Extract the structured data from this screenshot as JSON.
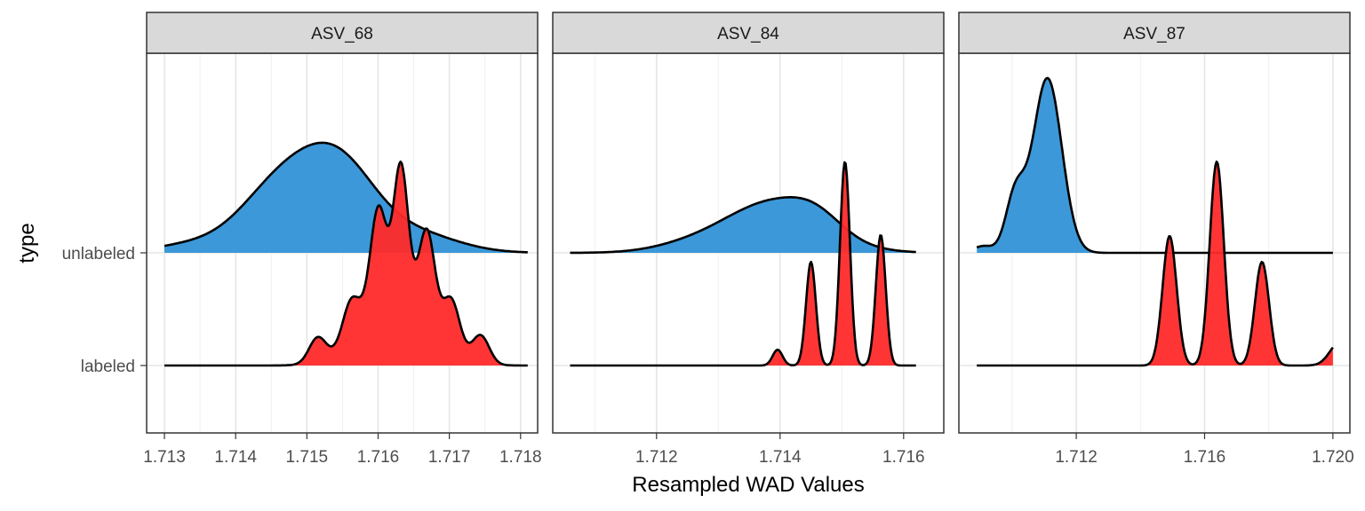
{
  "chart_data": {
    "type": "ridgeline",
    "title": "",
    "xlabel": "Resampled WAD Values",
    "ylabel": "type",
    "categories": [
      "labeled",
      "unlabeled"
    ],
    "grid": true,
    "legend": "none",
    "colors": {
      "unlabeled": "#3292d6",
      "labeled": "#ff2a2a",
      "strip_bg": "#d9d9d9"
    },
    "density_note": "densities given as gaussian components (center, sd, amplitude in row-height units)",
    "panels": [
      {
        "title": "ASV_68",
        "xlim": [
          1.71275,
          1.71824
        ],
        "x_range": [
          1.713,
          1.7181
        ],
        "ticks": [
          "1.713",
          "1.714",
          "1.715",
          "1.716",
          "1.717",
          "1.718"
        ],
        "minor_ticks": [
          1.7135,
          1.7145,
          1.7155,
          1.7165,
          1.7175
        ],
        "series": {
          "unlabeled": [
            [
              1.7147,
              0.0006,
              0.65
            ],
            [
              1.7155,
              0.0005,
              0.6
            ],
            [
              1.7165,
              0.0006,
              0.17
            ],
            [
              1.7133,
              0.0005,
              0.06
            ]
          ],
          "labeled": [
            [
              1.71625,
              0.00045,
              0.65
            ],
            [
              1.71515,
              0.00012,
              0.22
            ],
            [
              1.71562,
              0.00012,
              0.35
            ],
            [
              1.716,
              0.00011,
              0.85
            ],
            [
              1.71632,
              0.0001,
              1.15
            ],
            [
              1.71669,
              0.00011,
              0.8
            ],
            [
              1.71703,
              0.00012,
              0.45
            ],
            [
              1.71744,
              0.00012,
              0.25
            ]
          ]
        }
      },
      {
        "title": "ASV_84",
        "xlim": [
          1.71032,
          1.71665
        ],
        "x_range": [
          1.7106,
          1.7162
        ],
        "ticks": [
          "1.712",
          "1.714",
          "1.716"
        ],
        "minor_ticks": [
          1.711,
          1.713,
          1.715
        ],
        "series": {
          "unlabeled": [
            [
              1.7139,
              0.0008,
              0.45
            ],
            [
              1.7146,
              0.0004,
              0.12
            ],
            [
              1.7125,
              0.0006,
              0.05
            ]
          ],
          "labeled": [
            [
              1.71396,
              8e-05,
              0.14
            ],
            [
              1.7145,
              8e-05,
              0.92
            ],
            [
              1.71505,
              8e-05,
              1.81
            ],
            [
              1.71563,
              8e-05,
              1.16
            ]
          ]
        }
      },
      {
        "title": "ASV_87",
        "xlim": [
          1.70834,
          1.72053
        ],
        "x_range": [
          1.7089,
          1.72
        ],
        "ticks": [
          "1.712",
          "1.716",
          "1.720"
        ],
        "minor_ticks": [
          1.71,
          1.714,
          1.718
        ],
        "series": {
          "unlabeled": [
            [
              1.7111,
              0.00045,
              1.55
            ],
            [
              1.7101,
              0.0003,
              0.5
            ],
            [
              1.7091,
              0.0003,
              0.06
            ]
          ],
          "labeled": [
            [
              1.71491,
              0.00022,
              1.15
            ],
            [
              1.71638,
              0.00022,
              1.81
            ],
            [
              1.71779,
              0.00022,
              0.92
            ],
            [
              1.7202,
              0.0003,
              0.2
            ]
          ]
        }
      }
    ]
  }
}
